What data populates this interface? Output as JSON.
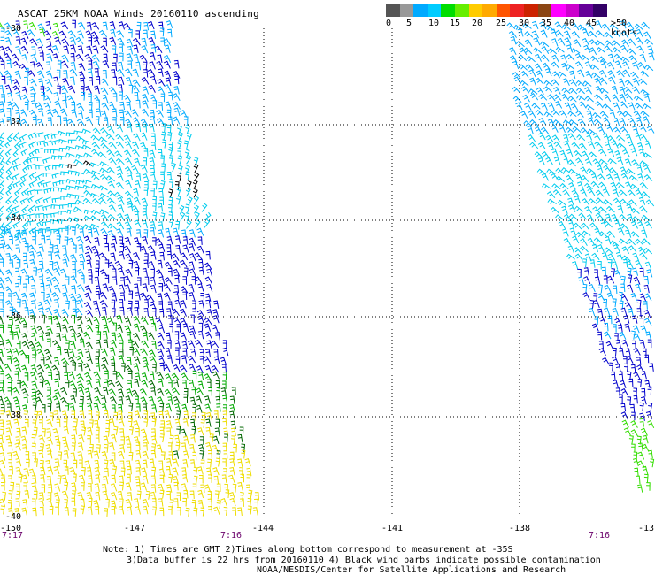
{
  "title": "ASCAT 25KM NOAA Winds 20160110 ascending",
  "colorbar": {
    "segments": [
      "#555555",
      "#999999",
      "#00aaff",
      "#00ccff",
      "#00dd00",
      "#66ee00",
      "#ffcc00",
      "#ffaa00",
      "#ff5500",
      "#ee2222",
      "#cc2200",
      "#8b4513",
      "#ff00ff",
      "#cc00cc",
      "#660099",
      "#330066"
    ],
    "labels": [
      "0",
      "5",
      "10",
      "15",
      "20",
      "25",
      "30",
      "35",
      "40",
      "45",
      ">50 knots"
    ]
  },
  "axes": {
    "lat_labels": [
      "-30",
      "-32",
      "-34",
      "-36",
      "-38",
      "-40"
    ],
    "lon_labels": [
      "-150",
      "-147",
      "-144",
      "-141",
      "-138",
      "-13"
    ]
  },
  "times": [
    "7:17",
    "7:16",
    "7:16"
  ],
  "notes": [
    "Note: 1) Times are GMT 2)Times along bottom correspond to measurement at -35S",
    "3)Data buffer is 22 hrs from 20160110 4) Black wind barbs indicate possible contamination",
    "NOAA/NESDIS/Center for Satellite Applications and Research"
  ],
  "wind_colors": {
    "blue": "#0000cc",
    "lightblue": "#00aaff",
    "cyan": "#00ccee",
    "green": "#00aa00",
    "darkgreen": "#006600",
    "lime": "#33dd00",
    "yellow": "#eedd00",
    "black": "#000000"
  }
}
